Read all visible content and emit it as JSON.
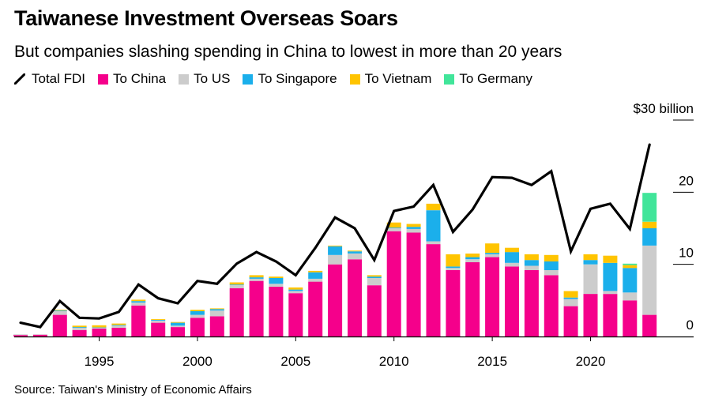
{
  "title": "Taiwanese Investment Overseas Soars",
  "subtitle": "But companies slashing spending in China to lowest in more than 20 years",
  "source": "Source: Taiwan's Ministry of Economic Affairs",
  "legend": [
    {
      "label": "Total FDI",
      "kind": "line",
      "color": "#000000"
    },
    {
      "label": "To China",
      "kind": "swatch",
      "color": "#f5008b"
    },
    {
      "label": "To US",
      "kind": "swatch",
      "color": "#cccccc"
    },
    {
      "label": "To Singapore",
      "kind": "swatch",
      "color": "#1bafeb"
    },
    {
      "label": "To Vietnam",
      "kind": "swatch",
      "color": "#ffc400"
    },
    {
      "label": "To Germany",
      "kind": "swatch",
      "color": "#41e59a"
    }
  ],
  "chart_data": {
    "type": "bar",
    "stacked": true,
    "unit_label": "$30 billion",
    "ylim": [
      0,
      30
    ],
    "y_ticks": [
      {
        "value": 0,
        "label": "0"
      },
      {
        "value": 10,
        "label": "10"
      },
      {
        "value": 20,
        "label": "20"
      },
      {
        "value": 30,
        "label": "$30 billion"
      }
    ],
    "x_ticks": [
      1995,
      2000,
      2005,
      2010,
      2015,
      2020
    ],
    "x": [
      1991,
      1992,
      1993,
      1994,
      1995,
      1996,
      1997,
      1998,
      1999,
      2000,
      2001,
      2002,
      2003,
      2004,
      2005,
      2006,
      2007,
      2008,
      2009,
      2010,
      2011,
      2012,
      2013,
      2014,
      2015,
      2016,
      2017,
      2018,
      2019,
      2020,
      2021,
      2022,
      2023
    ],
    "series": [
      {
        "name": "To China",
        "color": "#f5008b",
        "values": [
          0.2,
          0.25,
          3.0,
          0.9,
          1.1,
          1.2,
          4.3,
          1.9,
          1.3,
          2.6,
          2.8,
          6.7,
          7.7,
          6.9,
          6.0,
          7.6,
          10.0,
          10.7,
          7.1,
          14.6,
          14.4,
          12.8,
          9.2,
          10.3,
          11.0,
          9.7,
          9.2,
          8.5,
          4.2,
          5.9,
          5.9,
          5.0,
          3.0
        ]
      },
      {
        "name": "To US",
        "color": "#cccccc",
        "values": [
          0.1,
          0.05,
          0.5,
          0.3,
          0.1,
          0.3,
          0.4,
          0.3,
          0.2,
          0.4,
          0.8,
          0.4,
          0.3,
          0.4,
          0.3,
          0.4,
          1.3,
          0.8,
          1.0,
          0.4,
          0.5,
          0.4,
          0.3,
          0.4,
          0.4,
          0.5,
          0.6,
          0.7,
          1.0,
          4.1,
          0.4,
          1.1,
          9.6
        ]
      },
      {
        "name": "To Singapore",
        "color": "#1bafeb",
        "values": [
          0,
          0,
          0.1,
          0.1,
          0.05,
          0.1,
          0.2,
          0.1,
          0.4,
          0.5,
          0.2,
          0.1,
          0.2,
          0.8,
          0.2,
          0.9,
          1.2,
          0.3,
          0.2,
          0.1,
          0.3,
          4.3,
          0.2,
          0.3,
          0.2,
          1.5,
          0.8,
          1.2,
          0.2,
          0.6,
          3.9,
          3.4,
          2.4
        ]
      },
      {
        "name": "To Vietnam",
        "color": "#ffc400",
        "values": [
          0,
          0,
          0.1,
          0.2,
          0.3,
          0.2,
          0.2,
          0.1,
          0.1,
          0.2,
          0.1,
          0.3,
          0.3,
          0.2,
          0.3,
          0.2,
          0.1,
          0.1,
          0.2,
          0.7,
          0.4,
          0.9,
          1.7,
          0.5,
          1.3,
          0.6,
          0.8,
          0.9,
          0.9,
          0.8,
          1.0,
          0.4,
          0.9
        ]
      },
      {
        "name": "To Germany",
        "color": "#41e59a",
        "values": [
          0,
          0,
          0,
          0,
          0,
          0,
          0,
          0,
          0,
          0,
          0,
          0,
          0,
          0,
          0,
          0,
          0,
          0,
          0,
          0,
          0,
          0,
          0,
          0,
          0,
          0,
          0,
          0,
          0,
          0,
          0,
          0.2,
          4.0
        ]
      },
      {
        "name": "Total FDI",
        "color": "#000000",
        "type": "line",
        "values": [
          1.9,
          1.3,
          4.9,
          2.6,
          2.5,
          3.4,
          7.2,
          5.3,
          4.6,
          7.7,
          7.3,
          10.1,
          11.7,
          10.4,
          8.5,
          12.3,
          16.5,
          15.0,
          10.6,
          17.4,
          18.0,
          21.0,
          14.5,
          17.6,
          22.1,
          22.0,
          21.0,
          22.9,
          11.8,
          17.7,
          18.4,
          14.9,
          26.6
        ]
      }
    ]
  }
}
